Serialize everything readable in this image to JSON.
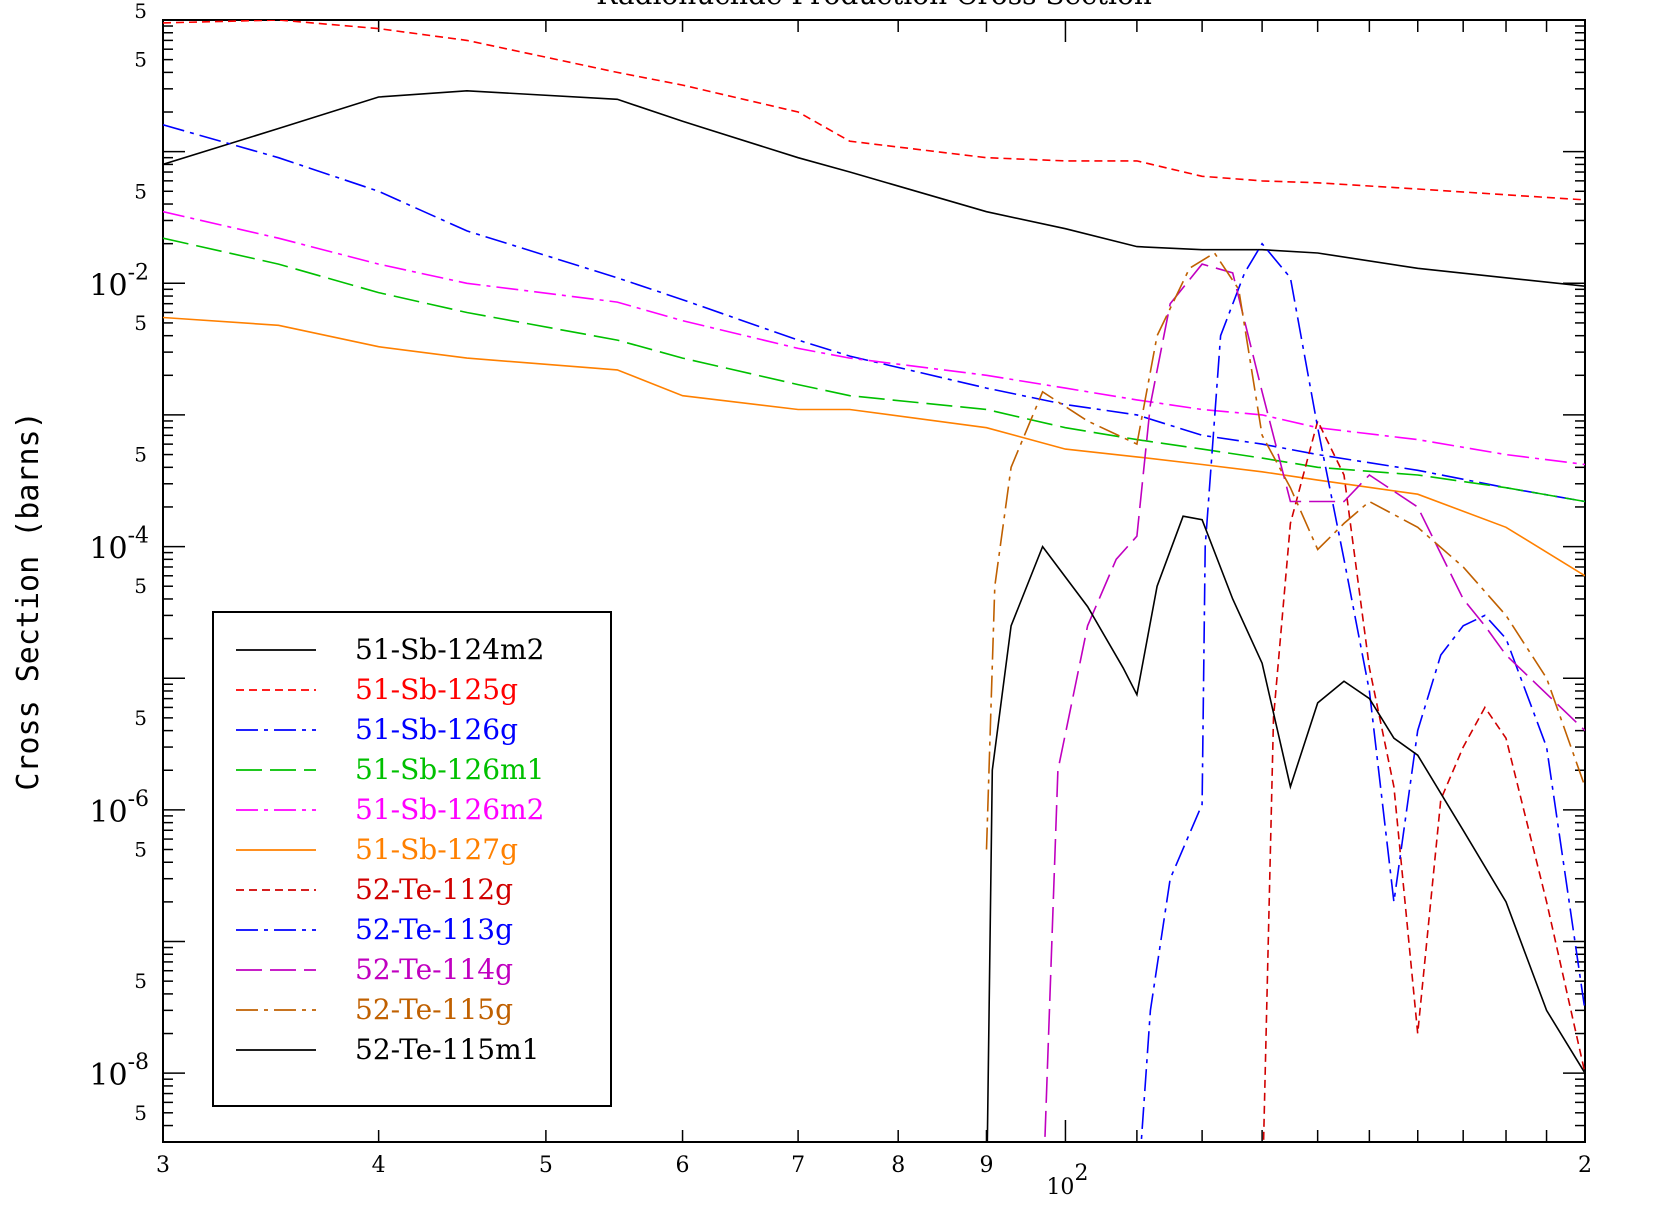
{
  "chart_data": {
    "type": "line",
    "title": "Radionuclide Production Cross Section",
    "ylabel": "Cross Section (barns)",
    "xlabel": "",
    "xscale": "log",
    "yscale": "log",
    "xlim": [
      30,
      200
    ],
    "ylim": [
      3e-09,
      1
    ],
    "grid": false,
    "legend_position": "bottom-left",
    "x_ticks": [
      {
        "value": 30,
        "label": "3"
      },
      {
        "value": 40,
        "label": "4"
      },
      {
        "value": 50,
        "label": "5"
      },
      {
        "value": 60,
        "label": "6"
      },
      {
        "value": 70,
        "label": "7"
      },
      {
        "value": 80,
        "label": "8"
      },
      {
        "value": 90,
        "label": "9"
      },
      {
        "value": 100,
        "label": "10",
        "sup": "2"
      },
      {
        "value": 200,
        "label": "2"
      }
    ],
    "y_ticks": [
      {
        "value": 0.01,
        "base": "10",
        "sup": "-2"
      },
      {
        "value": 0.0001,
        "base": "10",
        "sup": "-4"
      },
      {
        "value": 1e-06,
        "base": "10",
        "sup": "-6"
      },
      {
        "value": 1e-08,
        "base": "10",
        "sup": "-8"
      }
    ],
    "y_minor_labels": [
      {
        "value": 0.5,
        "label": "5"
      },
      {
        "value": 0.05,
        "label": "5"
      },
      {
        "value": 0.005,
        "label": "5"
      },
      {
        "value": 0.0005,
        "label": "5"
      },
      {
        "value": 5e-05,
        "label": "5"
      },
      {
        "value": 5e-06,
        "label": "5"
      },
      {
        "value": 5e-07,
        "label": "5"
      },
      {
        "value": 5e-08,
        "label": "5"
      },
      {
        "value": 5e-09,
        "label": "5"
      }
    ],
    "series": [
      {
        "name": "51-Sb-124m2",
        "color": "#000000",
        "dash": "solid",
        "x": [
          30,
          35,
          40,
          45,
          55,
          60,
          70,
          75,
          90,
          100,
          110,
          120,
          130,
          140,
          160,
          180,
          200
        ],
        "y": [
          0.08,
          0.15,
          0.26,
          0.29,
          0.25,
          0.17,
          0.09,
          0.07,
          0.035,
          0.026,
          0.019,
          0.018,
          0.018,
          0.017,
          0.013,
          0.011,
          0.0095
        ]
      },
      {
        "name": "51-Sb-125g",
        "color": "#ff0000",
        "dash": "short",
        "x": [
          30,
          35,
          40,
          45,
          55,
          60,
          70,
          75,
          90,
          100,
          110,
          120,
          130,
          140,
          160,
          180,
          200
        ],
        "y": [
          0.95,
          1.0,
          0.86,
          0.7,
          0.4,
          0.32,
          0.2,
          0.12,
          0.09,
          0.085,
          0.085,
          0.065,
          0.06,
          0.058,
          0.052,
          0.047,
          0.043
        ]
      },
      {
        "name": "51-Sb-126g",
        "color": "#0000ff",
        "dash": "dashdot",
        "x": [
          30,
          35,
          40,
          45,
          55,
          60,
          70,
          75,
          90,
          100,
          110,
          120,
          130,
          140,
          160,
          180,
          200
        ],
        "y": [
          0.16,
          0.09,
          0.05,
          0.025,
          0.011,
          0.0075,
          0.0037,
          0.0028,
          0.0016,
          0.0012,
          0.001,
          0.0007,
          0.0006,
          0.0005,
          0.00038,
          0.00028,
          0.00022
        ]
      },
      {
        "name": "51-Sb-126m1",
        "color": "#00c000",
        "dash": "long",
        "x": [
          30,
          35,
          40,
          45,
          55,
          60,
          70,
          75,
          90,
          100,
          110,
          120,
          130,
          140,
          160,
          180,
          200
        ],
        "y": [
          0.022,
          0.014,
          0.0085,
          0.006,
          0.0037,
          0.0027,
          0.0017,
          0.0014,
          0.0011,
          0.0008,
          0.00065,
          0.00055,
          0.00047,
          0.0004,
          0.00035,
          0.00028,
          0.00022
        ]
      },
      {
        "name": "51-Sb-126m2",
        "color": "#ff00ff",
        "dash": "dashdot",
        "x": [
          30,
          35,
          40,
          45,
          55,
          60,
          70,
          75,
          90,
          100,
          110,
          120,
          130,
          140,
          160,
          180,
          200
        ],
        "y": [
          0.035,
          0.022,
          0.014,
          0.01,
          0.0072,
          0.0052,
          0.0032,
          0.0027,
          0.002,
          0.0016,
          0.0013,
          0.0011,
          0.001,
          0.0008,
          0.00065,
          0.0005,
          0.00042
        ]
      },
      {
        "name": "51-Sb-127g",
        "color": "#ff8000",
        "dash": "solid",
        "x": [
          30,
          35,
          40,
          45,
          55,
          60,
          70,
          75,
          90,
          100,
          110,
          120,
          130,
          140,
          160,
          180,
          200
        ],
        "y": [
          0.0055,
          0.0048,
          0.0033,
          0.0027,
          0.0022,
          0.0014,
          0.0011,
          0.0011,
          0.0008,
          0.00055,
          0.00048,
          0.00042,
          0.00037,
          0.00032,
          0.00025,
          0.00014,
          6e-05
        ]
      },
      {
        "name": "52-Te-112g",
        "color": "#d00000",
        "dash": "short",
        "x": [
          130,
          132,
          135,
          140,
          145,
          150,
          155,
          160,
          165,
          170,
          175,
          180,
          190,
          200
        ],
        "y": [
          1e-09,
          5e-06,
          0.00015,
          0.0009,
          0.00035,
          1.2e-05,
          1.5e-06,
          2e-08,
          1.2e-06,
          3e-06,
          6e-06,
          3.5e-06,
          2e-07,
          1e-08
        ]
      },
      {
        "name": "52-Te-113g",
        "color": "#0000ff",
        "dash": "dashdot",
        "x": [
          110,
          112,
          115,
          120,
          120.5,
          123,
          127,
          130,
          135,
          140,
          145,
          150,
          155,
          160,
          165,
          170,
          175,
          180,
          190,
          200
        ],
        "y": [
          1e-09,
          3e-08,
          3e-07,
          1.1e-06,
          0.0001,
          0.004,
          0.012,
          0.02,
          0.011,
          0.0008,
          8e-05,
          8e-06,
          2e-07,
          4e-06,
          1.5e-05,
          2.5e-05,
          3e-05,
          2e-05,
          3e-06,
          3e-08
        ]
      },
      {
        "name": "52-Te-114g",
        "color": "#c000c0",
        "dash": "long",
        "x": [
          97,
          99,
          103,
          107,
          110,
          112,
          115,
          120,
          125,
          130,
          135,
          140,
          145,
          150,
          160,
          170,
          175,
          180,
          200
        ],
        "y": [
          1e-09,
          2e-06,
          2.5e-05,
          8e-05,
          0.00012,
          0.0012,
          0.007,
          0.014,
          0.012,
          0.0015,
          0.00022,
          0.00022,
          0.00022,
          0.00035,
          0.0002,
          4e-05,
          2.5e-05,
          1.5e-05,
          4e-06
        ]
      },
      {
        "name": "52-Te-115g",
        "color": "#c06000",
        "dash": "dashdot",
        "x": [
          90,
          91,
          93,
          97,
          103,
          110,
          113,
          118,
          122,
          126,
          130,
          135,
          140,
          145,
          150,
          160,
          170,
          180,
          190,
          200
        ],
        "y": [
          5e-07,
          5e-05,
          0.0004,
          0.0015,
          0.0009,
          0.0006,
          0.004,
          0.013,
          0.017,
          0.009,
          0.0007,
          0.00028,
          9.5e-05,
          0.00015,
          0.00022,
          0.00014,
          7e-05,
          3e-05,
          1e-05,
          1.5e-06
        ]
      },
      {
        "name": "52-Te-115m1",
        "color": "#000000",
        "dash": "solid",
        "x": [
          90,
          90.7,
          93,
          97,
          103,
          108,
          110,
          113,
          117,
          120,
          125,
          130,
          135,
          140,
          145,
          150,
          155,
          160,
          170,
          180,
          190,
          200
        ],
        "y": [
          1e-09,
          2e-06,
          2.5e-05,
          0.0001,
          3.5e-05,
          1.2e-05,
          7.5e-06,
          5e-05,
          0.00017,
          0.00016,
          4e-05,
          1.3e-05,
          1.5e-06,
          6.5e-06,
          9.5e-06,
          7e-06,
          3.5e-06,
          2.6e-06,
          7e-07,
          2e-07,
          3e-08,
          1e-08
        ]
      }
    ]
  }
}
